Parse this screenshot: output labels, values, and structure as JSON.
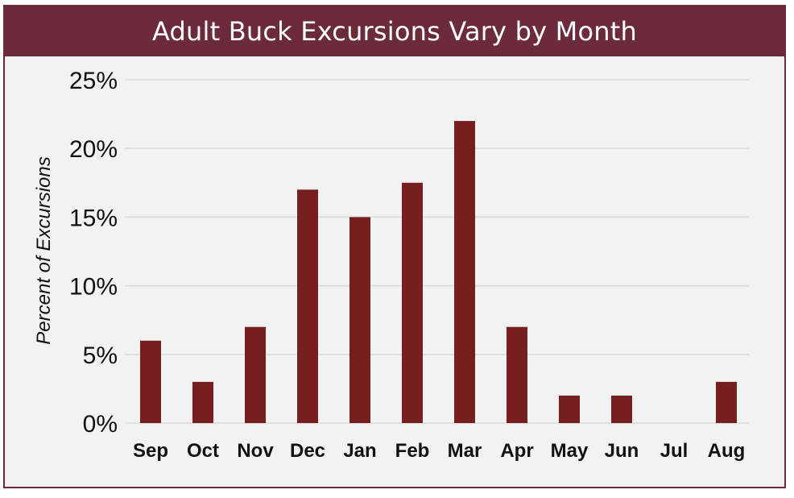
{
  "colors": {
    "frame": "#6b2b3b",
    "title_text": "#ffffff",
    "bar": "#761f1f",
    "grid": "#d9d9d9",
    "plot_bg": "#f2f2f2"
  },
  "chart_data": {
    "type": "bar",
    "title": "Adult Buck Excursions Vary by Month",
    "xlabel": "",
    "ylabel": "Percent of Excursions",
    "categories": [
      "Sep",
      "Oct",
      "Nov",
      "Dec",
      "Jan",
      "Feb",
      "Mar",
      "Apr",
      "May",
      "Jun",
      "Jul",
      "Aug"
    ],
    "values": [
      6,
      3,
      7,
      17,
      15,
      17.5,
      22,
      7,
      2,
      2,
      0,
      3
    ],
    "ylim": [
      0,
      25
    ],
    "yticks": [
      0,
      5,
      10,
      15,
      20,
      25
    ],
    "ytick_labels": [
      "0%",
      "5%",
      "10%",
      "15%",
      "20%",
      "25%"
    ],
    "grid": true,
    "legend": "none"
  }
}
